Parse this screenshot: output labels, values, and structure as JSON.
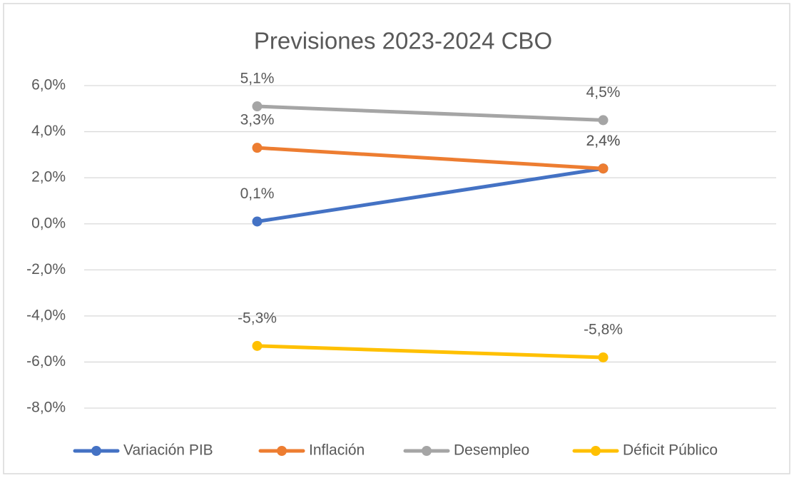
{
  "chart_data": {
    "type": "line",
    "title": "Previsiones 2023-2024 CBO",
    "categories": [
      null,
      null
    ],
    "series": [
      {
        "name": "Variación PIB",
        "color": "#4472c4",
        "values": [
          0.1,
          2.4
        ],
        "value_labels": [
          "0,1%",
          "2,4%"
        ]
      },
      {
        "name": "Inflación",
        "color": "#ed7d31",
        "values": [
          3.3,
          2.4
        ],
        "value_labels": [
          "3,3%",
          "2,4%"
        ]
      },
      {
        "name": "Desempleo",
        "color": "#a5a5a5",
        "values": [
          5.1,
          4.5
        ],
        "value_labels": [
          "5,1%",
          "4,5%"
        ]
      },
      {
        "name": "Déficit Público",
        "color": "#ffc000",
        "values": [
          -5.3,
          -5.8
        ],
        "value_labels": [
          "-5,3%",
          "-5,8%"
        ]
      }
    ],
    "ylim": [
      -8,
      6
    ],
    "yticks": [
      {
        "value": -8,
        "label": "-8,0%"
      },
      {
        "value": -6,
        "label": "-6,0%"
      },
      {
        "value": -4,
        "label": "-4,0%"
      },
      {
        "value": -2,
        "label": "-2,0%"
      },
      {
        "value": 0,
        "label": "0,0%"
      },
      {
        "value": 2,
        "label": "2,0%"
      },
      {
        "value": 4,
        "label": "4,0%"
      },
      {
        "value": 6,
        "label": "6,0%"
      }
    ],
    "grid": true,
    "legend": "bottom"
  }
}
